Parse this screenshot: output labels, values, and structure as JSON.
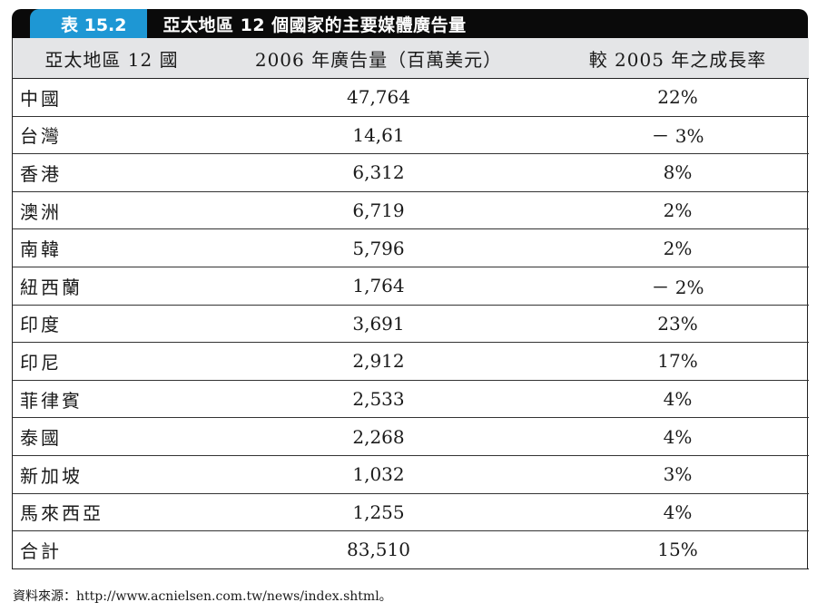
{
  "title": {
    "label": "表 15.2",
    "text": "亞太地區 12 個國家的主要媒體廣告量"
  },
  "headers": {
    "region": "亞太地區 12 國",
    "ad_volume": "2006 年廣告量（百萬美元）",
    "growth": "較 2005 年之成長率"
  },
  "rows": [
    {
      "region": "中國",
      "ad_volume": "47,764",
      "growth": "22%"
    },
    {
      "region": "台灣",
      "ad_volume": "14,61",
      "growth": "－ 3%"
    },
    {
      "region": "香港",
      "ad_volume": "6,312",
      "growth": "8%"
    },
    {
      "region": "澳洲",
      "ad_volume": "6,719",
      "growth": "2%"
    },
    {
      "region": "南韓",
      "ad_volume": "5,796",
      "growth": "2%"
    },
    {
      "region": "紐西蘭",
      "ad_volume": "1,764",
      "growth": "－ 2%"
    },
    {
      "region": "印度",
      "ad_volume": "3,691",
      "growth": "23%"
    },
    {
      "region": "印尼",
      "ad_volume": "2,912",
      "growth": "17%"
    },
    {
      "region": "菲律賓",
      "ad_volume": "2,533",
      "growth": "4%"
    },
    {
      "region": "泰國",
      "ad_volume": "2,268",
      "growth": "4%"
    },
    {
      "region": "新加坡",
      "ad_volume": "1,032",
      "growth": "3%"
    },
    {
      "region": "馬來西亞",
      "ad_volume": "1,255",
      "growth": "4%"
    },
    {
      "region": "合計",
      "ad_volume": "83,510",
      "growth": "15%"
    }
  ],
  "source": "資料來源：http://www.acnielsen.com.tw/news/index.shtml。",
  "colors": {
    "title_label_bg": "#1e97d4",
    "title_bar_bg": "#0a0a0a",
    "header_bg": "#e4e5e7"
  }
}
